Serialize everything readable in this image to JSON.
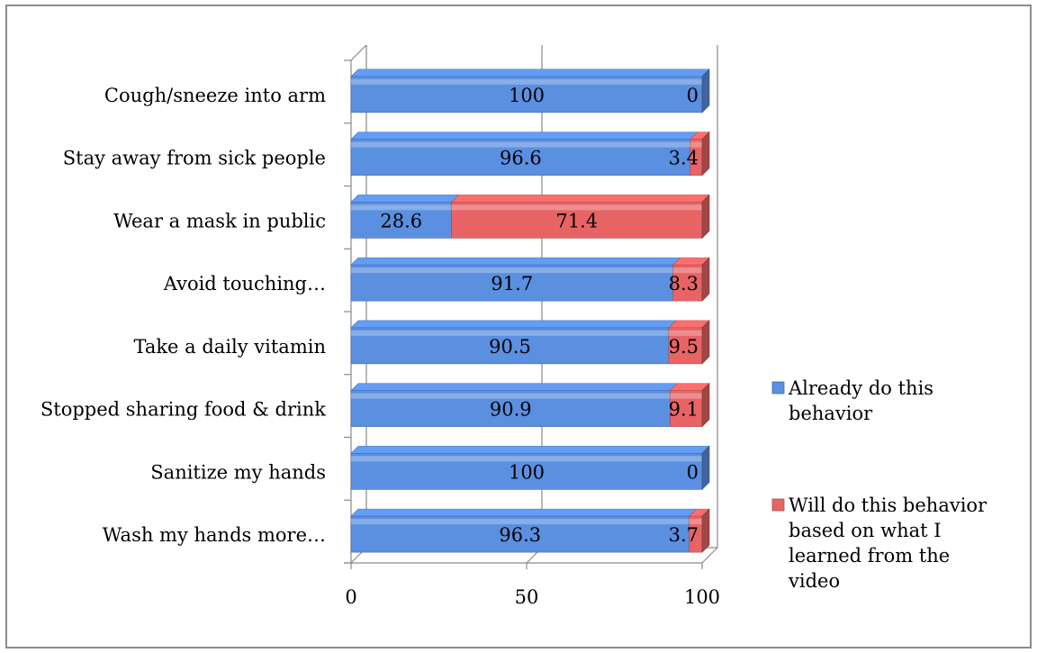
{
  "chart_data": {
    "type": "bar",
    "stacked": true,
    "orientation": "horizontal",
    "style": "3d",
    "title": "",
    "xlabel": "",
    "ylabel": "",
    "categories": [
      "Cough/sneeze into arm",
      "Stay away from sick people",
      "Wear a mask in public",
      "Avoid touching…",
      "Take a daily vitamin",
      "Stopped sharing food & drink",
      "Sanitize my hands",
      "Wash my hands more…"
    ],
    "series": [
      {
        "name": "Already do this behavior",
        "color": "#5b8fe0",
        "values": [
          100,
          96.6,
          28.6,
          91.7,
          90.5,
          90.9,
          100,
          96.3
        ],
        "labels": [
          "100",
          "96.6",
          "28.6",
          "91.7",
          "90.5",
          "90.9",
          "100",
          "96.3"
        ]
      },
      {
        "name": "Will do this behavior based on what I learned from the video",
        "color": "#e86464",
        "values": [
          0,
          3.4,
          71.4,
          8.3,
          9.5,
          9.1,
          0,
          3.7
        ],
        "labels": [
          "0",
          "3.4",
          "71.4",
          "8.3",
          "9.5",
          "9.1",
          "0",
          "3.7"
        ]
      }
    ],
    "xlim": [
      0,
      100
    ],
    "x_ticks": [
      "0",
      "50",
      "100"
    ],
    "grid": true,
    "legend_position": "right",
    "legend_lines": [
      [
        "Already do this",
        "behavior"
      ],
      [
        "Will do this behavior",
        "based on what I",
        "learned from the",
        "video"
      ]
    ]
  }
}
